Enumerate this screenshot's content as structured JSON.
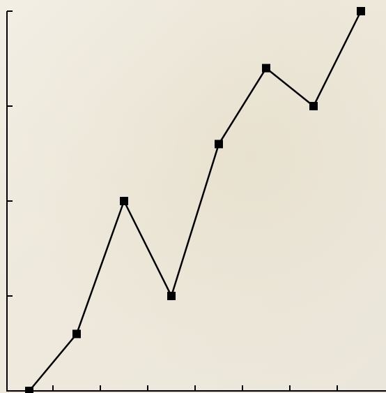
{
  "chart_data": {
    "type": "line",
    "categories": [
      null,
      null,
      null,
      null,
      null,
      null,
      null,
      null
    ],
    "values": [
      0,
      1.2,
      4,
      2,
      5.2,
      6.8,
      6,
      8
    ],
    "color": "#000000",
    "ylim": [
      0,
      8
    ],
    "yticks": [
      0,
      2,
      4,
      6,
      8
    ],
    "grid": false,
    "marker": "square"
  }
}
